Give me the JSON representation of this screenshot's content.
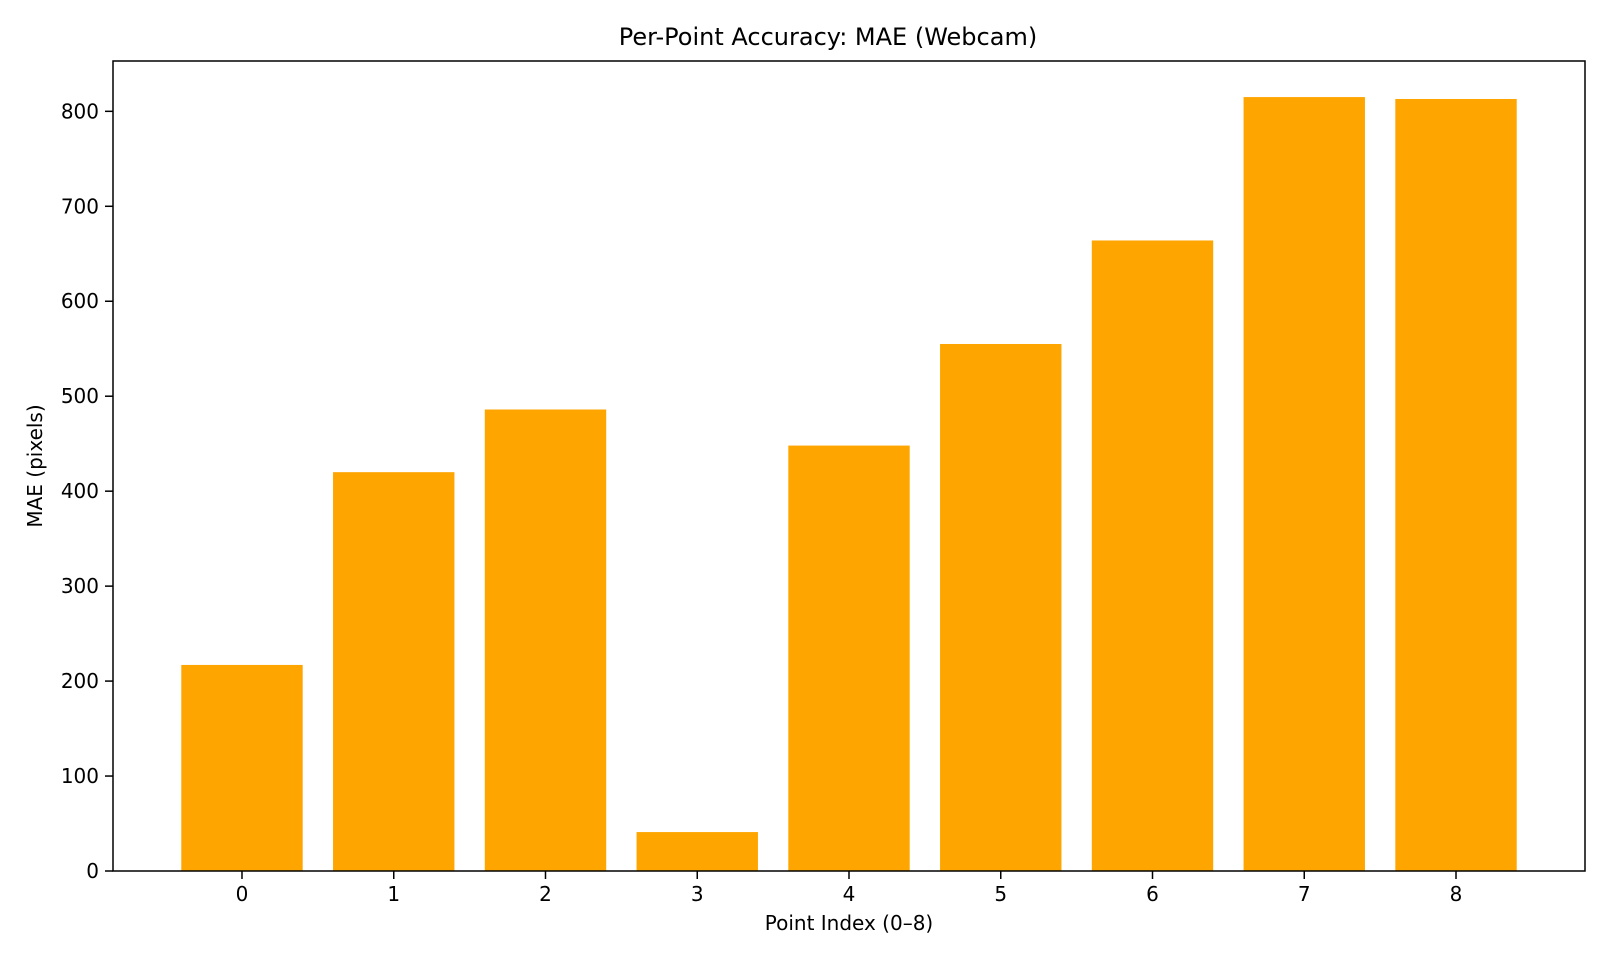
{
  "chart_data": {
    "type": "bar",
    "title": "Per-Point Accuracy: MAE (Webcam)",
    "xlabel": "Point Index (0–8)",
    "ylabel": "MAE (pixels)",
    "categories": [
      "0",
      "1",
      "2",
      "3",
      "4",
      "5",
      "6",
      "7",
      "8"
    ],
    "values": [
      217,
      420,
      486,
      41,
      448,
      555,
      664,
      815,
      813
    ],
    "ylim": [
      0,
      853
    ],
    "yticks": [
      0,
      100,
      200,
      300,
      400,
      500,
      600,
      700,
      800
    ],
    "bar_color": "#FFA500",
    "grid": false,
    "legend": "none"
  }
}
